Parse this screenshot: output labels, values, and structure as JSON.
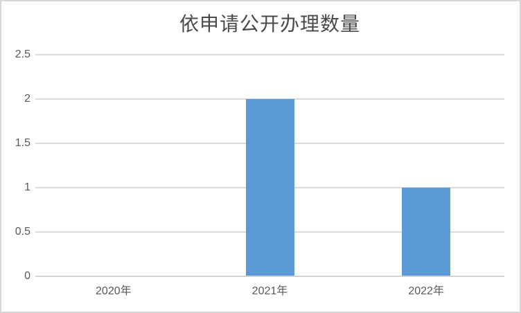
{
  "chart_data": {
    "type": "bar",
    "title": "依申请公开办理数量",
    "categories": [
      "2020年",
      "2021年",
      "2022年"
    ],
    "values": [
      0,
      2,
      1
    ],
    "xlabel": "",
    "ylabel": "",
    "ylim": [
      0,
      2.5
    ],
    "yticks": [
      0,
      0.5,
      1,
      1.5,
      2,
      2.5
    ],
    "grid": "horizontal",
    "legend": "none",
    "colors": {
      "bar": "#5B9BD5",
      "gridline": "#DADADA",
      "axis_line": "#D2D2D2",
      "tick_label": "#595959",
      "title": "#4A4A4A",
      "background": "#FFFFFF",
      "border": "#D7D7D7"
    }
  }
}
